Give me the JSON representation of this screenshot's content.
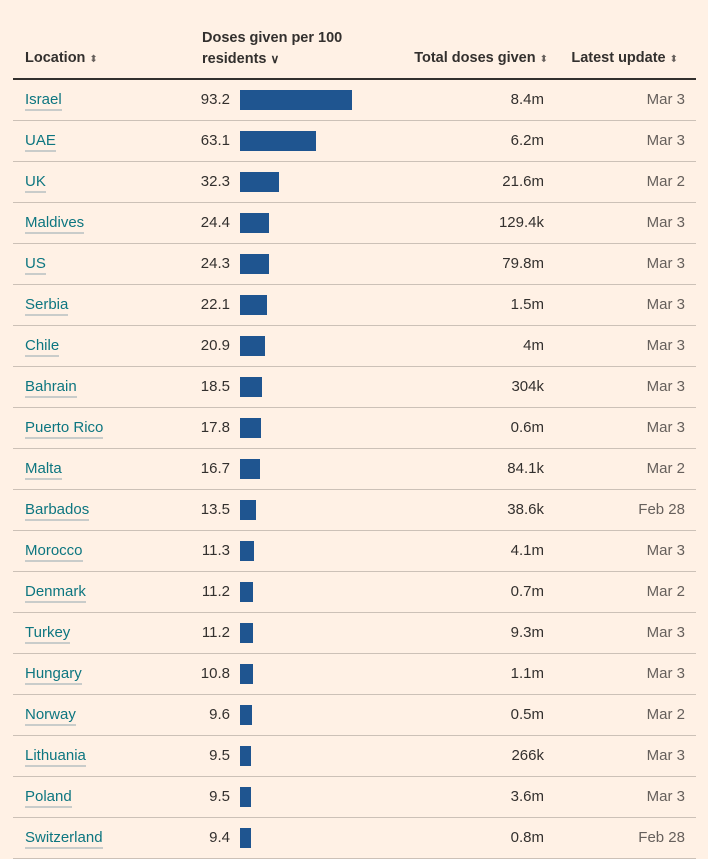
{
  "headers": {
    "location": "Location",
    "doses": "Doses given per 100 residents",
    "total": "Total doses given",
    "update": "Latest update",
    "sort_icon": "⇳",
    "sorted_icon": "⌄"
  },
  "colors": {
    "bar": "#1f5590",
    "background": "#fff1e5"
  },
  "rows": [
    {
      "location": "Israel",
      "doses": 93.2,
      "total": "8.4m",
      "update": "Mar 3"
    },
    {
      "location": "UAE",
      "doses": 63.1,
      "total": "6.2m",
      "update": "Mar 3"
    },
    {
      "location": "UK",
      "doses": 32.3,
      "total": "21.6m",
      "update": "Mar 2"
    },
    {
      "location": "Maldives",
      "doses": 24.4,
      "total": "129.4k",
      "update": "Mar 3"
    },
    {
      "location": "US",
      "doses": 24.3,
      "total": "79.8m",
      "update": "Mar 3"
    },
    {
      "location": "Serbia",
      "doses": 22.1,
      "total": "1.5m",
      "update": "Mar 3"
    },
    {
      "location": "Chile",
      "doses": 20.9,
      "total": "4m",
      "update": "Mar 3"
    },
    {
      "location": "Bahrain",
      "doses": 18.5,
      "total": "304k",
      "update": "Mar 3"
    },
    {
      "location": "Puerto Rico",
      "doses": 17.8,
      "total": "0.6m",
      "update": "Mar 3"
    },
    {
      "location": "Malta",
      "doses": 16.7,
      "total": "84.1k",
      "update": "Mar 2"
    },
    {
      "location": "Barbados",
      "doses": 13.5,
      "total": "38.6k",
      "update": "Feb 28"
    },
    {
      "location": "Morocco",
      "doses": 11.3,
      "total": "4.1m",
      "update": "Mar 3"
    },
    {
      "location": "Denmark",
      "doses": 11.2,
      "total": "0.7m",
      "update": "Mar 2"
    },
    {
      "location": "Turkey",
      "doses": 11.2,
      "total": "9.3m",
      "update": "Mar 3"
    },
    {
      "location": "Hungary",
      "doses": 10.8,
      "total": "1.1m",
      "update": "Mar 3"
    },
    {
      "location": "Norway",
      "doses": 9.6,
      "total": "0.5m",
      "update": "Mar 2"
    },
    {
      "location": "Lithuania",
      "doses": 9.5,
      "total": "266k",
      "update": "Mar 3"
    },
    {
      "location": "Poland",
      "doses": 9.5,
      "total": "3.6m",
      "update": "Mar 3"
    },
    {
      "location": "Switzerland",
      "doses": 9.4,
      "total": "0.8m",
      "update": "Feb 28"
    }
  ]
}
